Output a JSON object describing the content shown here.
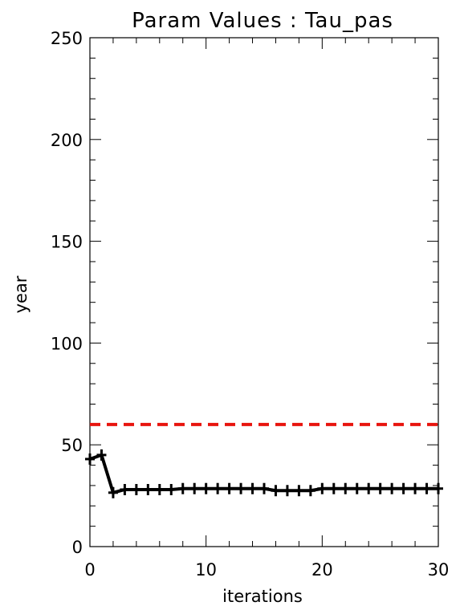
{
  "chart_data": {
    "type": "line",
    "title": "Param Values : Tau_pas",
    "xlabel": "iterations",
    "ylabel": "year",
    "xlim": [
      0,
      30
    ],
    "ylim": [
      0,
      250
    ],
    "xticks": [
      "0",
      "10",
      "20",
      "30"
    ],
    "yticks": [
      "0",
      "50",
      "100",
      "150",
      "200",
      "250"
    ],
    "series": [
      {
        "color": "#000000",
        "style": "solid-with-plus-markers",
        "x": [
          0,
          1,
          2,
          3,
          4,
          5,
          6,
          7,
          8,
          9,
          10,
          11,
          12,
          13,
          14,
          15,
          16,
          17,
          18,
          19,
          20,
          21,
          22,
          23,
          24,
          25,
          26,
          27,
          28,
          29,
          30
        ],
        "values": [
          43,
          45,
          26.5,
          28,
          28,
          28,
          28,
          28,
          28.5,
          28.5,
          28.5,
          28.5,
          28.5,
          28.5,
          28.5,
          28.5,
          27.5,
          27.5,
          27.5,
          27.5,
          28.5,
          28.5,
          28.5,
          28.5,
          28.5,
          28.5,
          28.5,
          28.5,
          28.5,
          28.5,
          28.5
        ]
      },
      {
        "color": "#e8140e",
        "style": "dashed",
        "x": [
          0,
          30
        ],
        "values": [
          60,
          60
        ]
      }
    ],
    "grid": false,
    "legend": "none"
  }
}
